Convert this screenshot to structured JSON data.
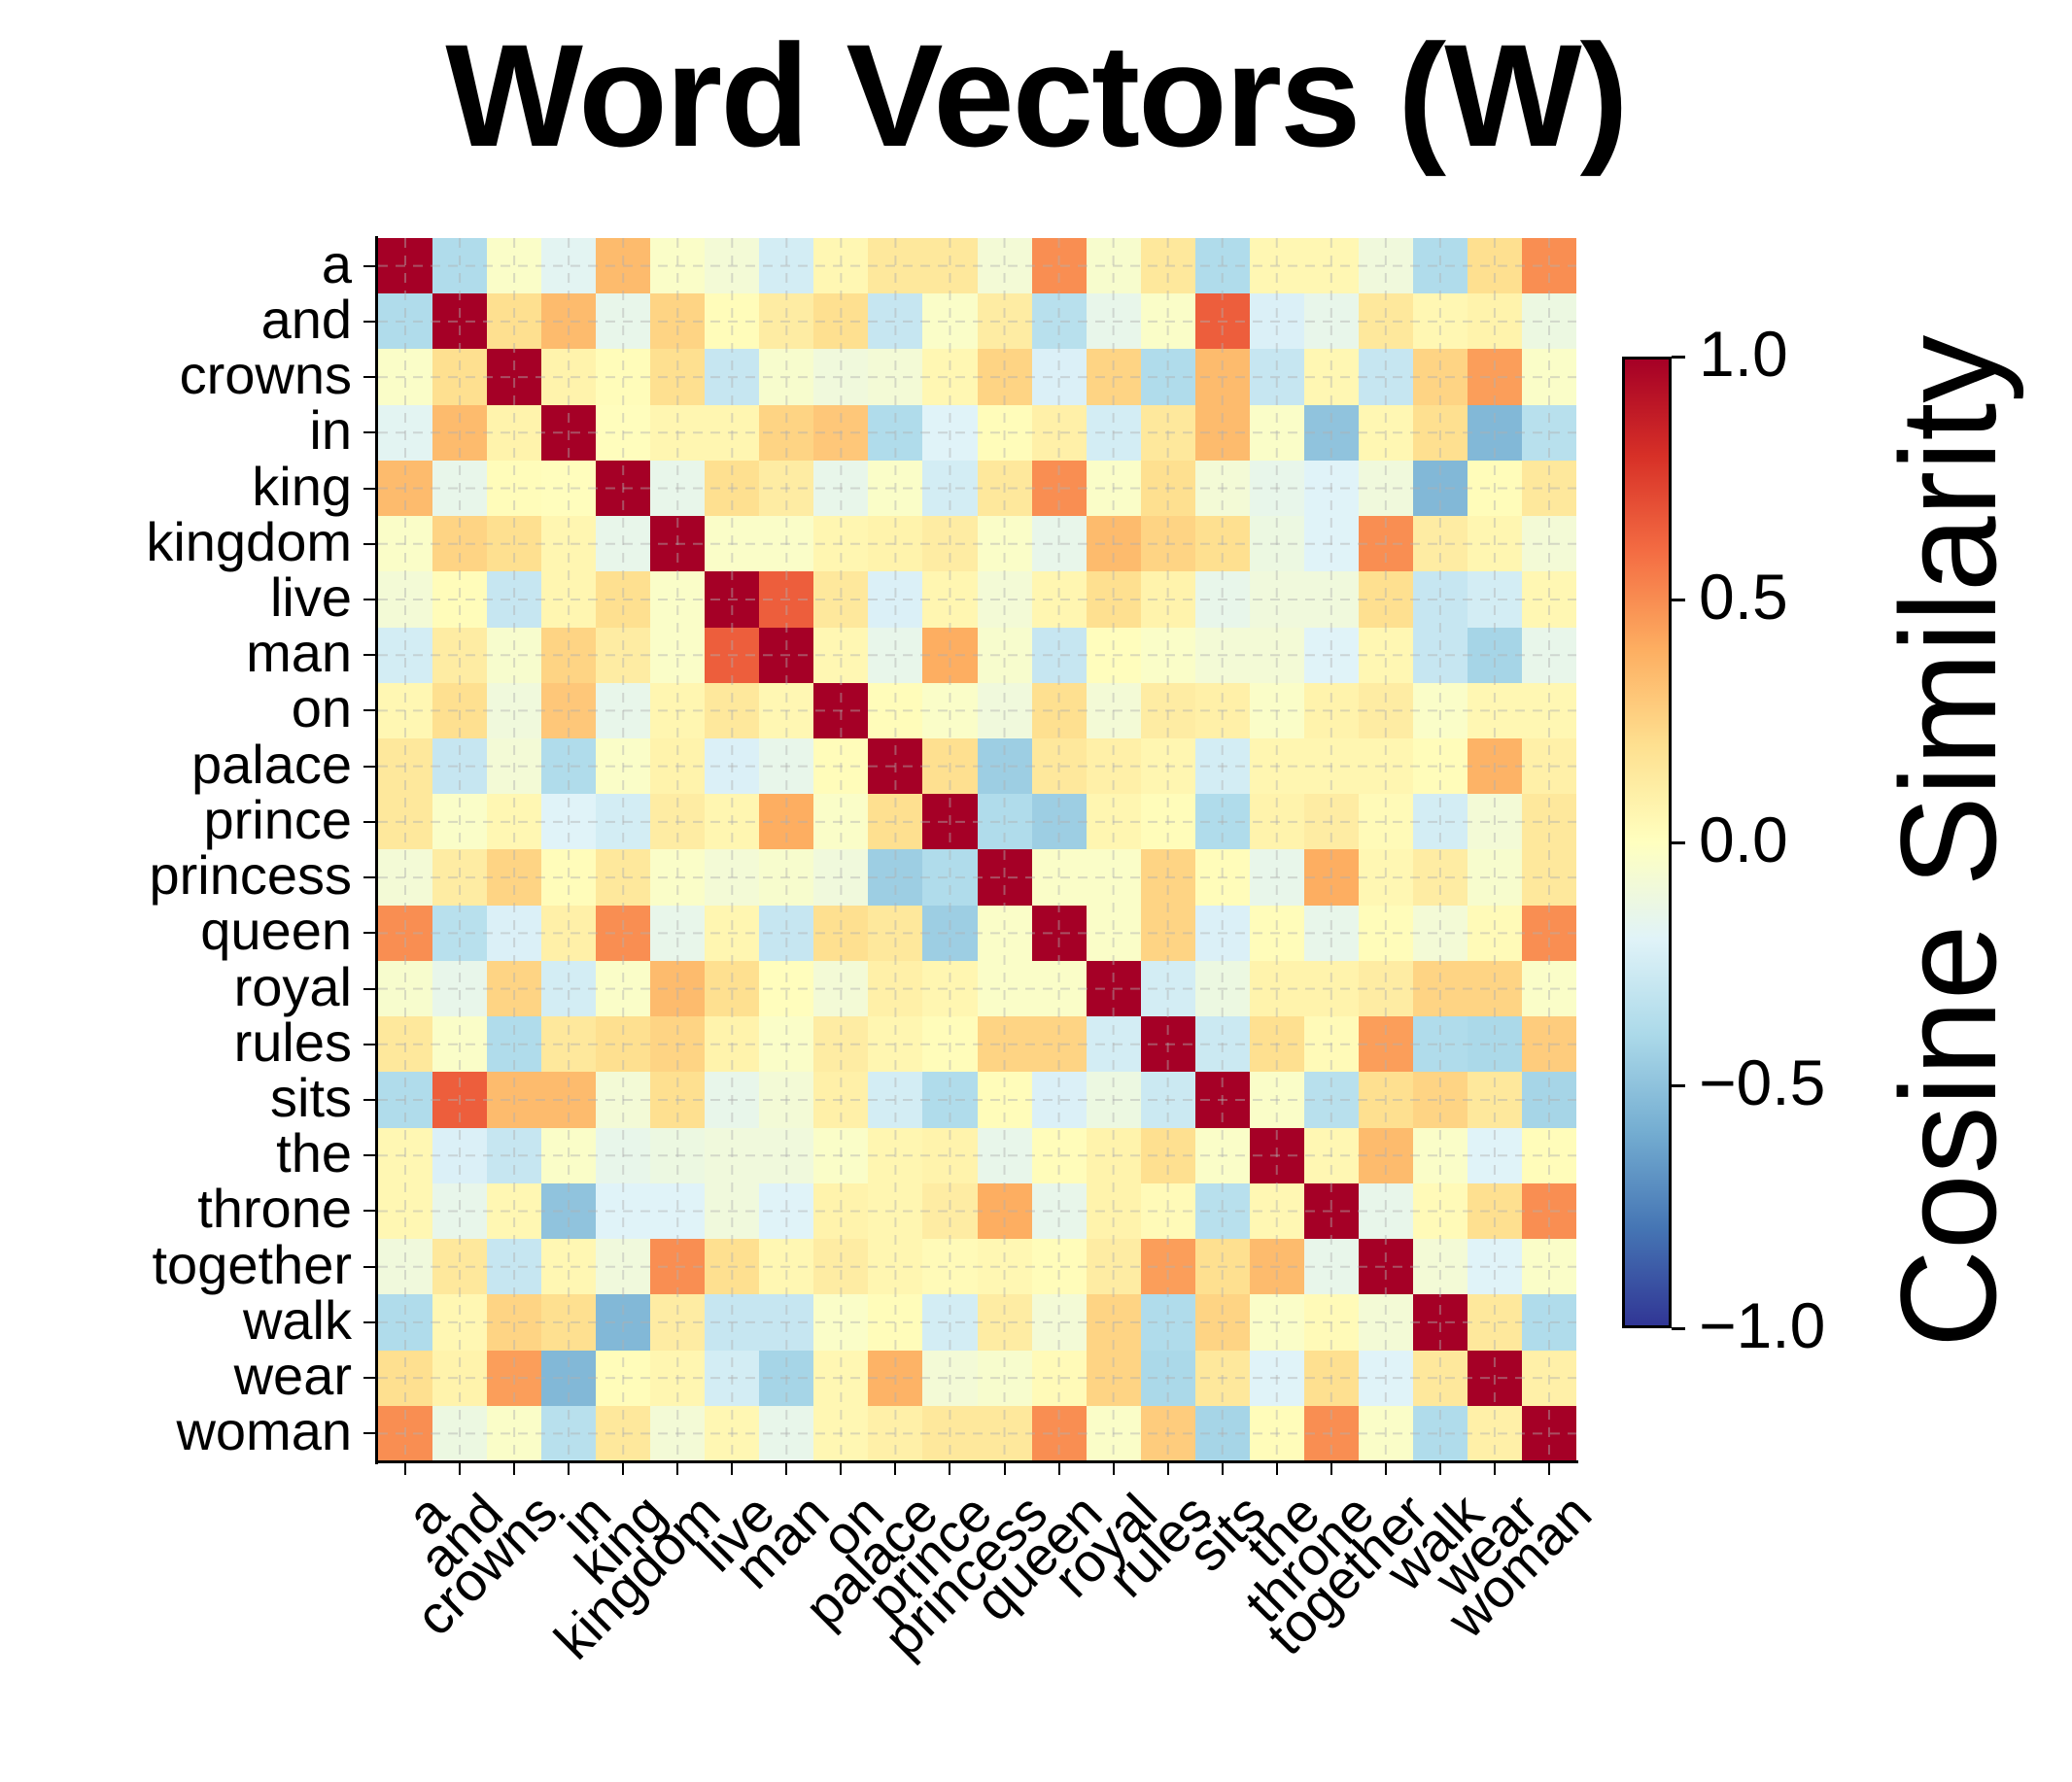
{
  "title": "Word Vectors (W)",
  "colorbar": {
    "label": "Cosine Similarity",
    "ticks": [
      "1.0",
      "0.5",
      "0.0",
      "−0.5",
      "−1.0"
    ],
    "tick_values": [
      1.0,
      0.5,
      0.0,
      -0.5,
      -1.0
    ],
    "colormap": "RdYlBu_r",
    "stops": [
      "#313695",
      "#4575b4",
      "#74add1",
      "#abd9e9",
      "#e0f3f8",
      "#ffffbf",
      "#fee090",
      "#fdae61",
      "#f46d43",
      "#d73027",
      "#a50026"
    ]
  },
  "chart_data": {
    "type": "heatmap",
    "title": "Word Vectors (W)",
    "xlabel": "",
    "ylabel": "",
    "colorbar_label": "Cosine Similarity",
    "vmin": -1.0,
    "vmax": 1.0,
    "grid": true,
    "labels": [
      "a",
      "and",
      "crowns",
      "in",
      "king",
      "kingdom",
      "live",
      "man",
      "on",
      "palace",
      "prince",
      "princess",
      "queen",
      "royal",
      "rules",
      "sits",
      "the",
      "throne",
      "together",
      "walk",
      "wear",
      "woman"
    ],
    "values": [
      [
        1,
        -0.38,
        -0.03,
        -0.18,
        0.35,
        -0.03,
        -0.08,
        -0.25,
        0.05,
        0.15,
        0.15,
        -0.08,
        0.5,
        -0.05,
        0.15,
        -0.38,
        0.05,
        0.05,
        -0.1,
        -0.38,
        0.2,
        0.5
      ],
      [
        -0.38,
        1,
        0.2,
        0.35,
        -0.15,
        0.25,
        0.02,
        0.12,
        0.2,
        -0.3,
        -0.03,
        0.12,
        -0.35,
        -0.15,
        -0.03,
        0.65,
        -0.22,
        -0.15,
        0.15,
        0.05,
        0.08,
        -0.12
      ],
      [
        -0.03,
        0.2,
        1,
        0.08,
        0.02,
        0.2,
        -0.3,
        -0.05,
        -0.1,
        -0.08,
        0.05,
        0.25,
        -0.22,
        0.25,
        -0.38,
        0.35,
        -0.3,
        0.05,
        -0.3,
        0.25,
        0.45,
        -0.03
      ],
      [
        -0.18,
        0.35,
        0.08,
        1,
        0.01,
        0.06,
        0.06,
        0.25,
        0.3,
        -0.38,
        -0.2,
        0.02,
        0.1,
        -0.25,
        0.15,
        0.35,
        -0.03,
        -0.5,
        0.05,
        0.2,
        -0.55,
        -0.35
      ],
      [
        0.35,
        -0.15,
        0.02,
        0.01,
        1,
        -0.15,
        0.2,
        0.12,
        -0.15,
        -0.03,
        -0.25,
        0.15,
        0.5,
        -0.03,
        0.2,
        -0.08,
        -0.15,
        -0.2,
        -0.1,
        -0.55,
        0.02,
        0.15
      ],
      [
        -0.03,
        0.25,
        0.2,
        0.06,
        -0.15,
        1,
        -0.03,
        -0.03,
        0.06,
        0.08,
        0.12,
        -0.03,
        -0.15,
        0.35,
        0.25,
        0.2,
        -0.12,
        -0.2,
        0.5,
        0.12,
        0.06,
        -0.08
      ],
      [
        -0.08,
        0.02,
        -0.3,
        0.06,
        0.2,
        -0.03,
        1,
        0.65,
        0.15,
        -0.22,
        0.06,
        -0.08,
        0.06,
        0.2,
        0.08,
        -0.15,
        -0.1,
        -0.1,
        0.2,
        -0.3,
        -0.25,
        0.05
      ],
      [
        -0.25,
        0.12,
        -0.05,
        0.25,
        0.12,
        -0.03,
        0.65,
        1,
        0.05,
        -0.15,
        0.4,
        -0.05,
        -0.3,
        0.01,
        -0.03,
        -0.08,
        -0.08,
        -0.2,
        0.05,
        -0.3,
        -0.42,
        -0.15
      ],
      [
        0.05,
        0.2,
        -0.1,
        0.3,
        -0.15,
        0.06,
        0.15,
        0.05,
        1,
        0.02,
        -0.03,
        -0.1,
        0.2,
        -0.08,
        0.12,
        0.1,
        -0.03,
        0.08,
        0.12,
        -0.03,
        0.05,
        0.05
      ],
      [
        0.15,
        -0.3,
        -0.08,
        -0.38,
        -0.03,
        0.08,
        -0.22,
        -0.15,
        0.02,
        1,
        0.2,
        -0.45,
        0.15,
        0.1,
        0.06,
        -0.25,
        0.06,
        0.06,
        0.06,
        0.02,
        0.38,
        0.1
      ],
      [
        0.15,
        -0.03,
        0.05,
        -0.2,
        -0.25,
        0.12,
        0.06,
        0.4,
        -0.03,
        0.2,
        1,
        -0.38,
        -0.45,
        0.06,
        0.02,
        -0.38,
        0.08,
        0.12,
        0.03,
        -0.25,
        -0.08,
        0.15
      ],
      [
        -0.08,
        0.12,
        0.25,
        0.02,
        0.15,
        -0.03,
        -0.08,
        -0.05,
        -0.1,
        -0.45,
        -0.38,
        1,
        -0.03,
        -0.03,
        0.25,
        0.02,
        -0.15,
        0.4,
        0.05,
        0.12,
        -0.05,
        0.15
      ],
      [
        0.5,
        -0.35,
        -0.22,
        0.1,
        0.5,
        -0.15,
        0.06,
        -0.3,
        0.2,
        0.15,
        -0.45,
        -0.03,
        1,
        -0.03,
        0.25,
        -0.22,
        0.02,
        -0.15,
        0.02,
        -0.08,
        0.03,
        0.5
      ],
      [
        -0.05,
        -0.15,
        0.25,
        -0.25,
        -0.03,
        0.35,
        0.2,
        0.01,
        -0.08,
        0.1,
        0.06,
        -0.03,
        -0.03,
        1,
        -0.25,
        -0.12,
        0.08,
        0.08,
        0.12,
        0.25,
        0.25,
        -0.03
      ],
      [
        0.15,
        -0.03,
        -0.38,
        0.15,
        0.2,
        0.25,
        0.08,
        -0.03,
        0.12,
        0.06,
        0.02,
        0.25,
        0.25,
        -0.25,
        1,
        -0.28,
        0.2,
        0.03,
        0.45,
        -0.38,
        -0.4,
        0.28
      ],
      [
        -0.38,
        0.65,
        0.35,
        0.35,
        -0.08,
        0.2,
        -0.15,
        -0.08,
        0.1,
        -0.25,
        -0.38,
        0.02,
        -0.22,
        -0.12,
        -0.28,
        1,
        -0.03,
        -0.35,
        0.2,
        0.25,
        0.15,
        -0.42
      ],
      [
        0.05,
        -0.22,
        -0.3,
        -0.03,
        -0.15,
        -0.12,
        -0.1,
        -0.1,
        -0.03,
        0.06,
        0.08,
        -0.15,
        0.02,
        0.08,
        0.2,
        -0.03,
        1,
        0.05,
        0.35,
        -0.03,
        -0.2,
        0.02
      ],
      [
        0.05,
        -0.15,
        0.05,
        -0.5,
        -0.2,
        -0.2,
        -0.1,
        -0.2,
        0.08,
        0.06,
        0.12,
        0.4,
        -0.15,
        0.08,
        0.03,
        -0.35,
        0.05,
        1,
        -0.15,
        0.03,
        0.2,
        0.5
      ],
      [
        -0.1,
        0.15,
        -0.3,
        0.05,
        -0.1,
        0.5,
        0.2,
        0.05,
        0.12,
        0.06,
        0.03,
        0.05,
        0.02,
        0.12,
        0.45,
        0.2,
        0.35,
        -0.15,
        1,
        -0.08,
        -0.2,
        -0.03
      ],
      [
        -0.38,
        0.05,
        0.25,
        0.2,
        -0.55,
        0.12,
        -0.3,
        -0.3,
        -0.03,
        0.02,
        -0.25,
        0.12,
        -0.08,
        0.25,
        -0.38,
        0.25,
        -0.03,
        0.03,
        -0.08,
        1,
        0.15,
        -0.38
      ],
      [
        0.2,
        0.08,
        0.45,
        -0.55,
        0.02,
        0.06,
        -0.25,
        -0.42,
        0.05,
        0.38,
        -0.08,
        -0.05,
        0.03,
        0.25,
        -0.4,
        0.15,
        -0.2,
        0.2,
        -0.2,
        0.15,
        1,
        0.1
      ],
      [
        0.5,
        -0.12,
        -0.03,
        -0.35,
        0.15,
        -0.08,
        0.05,
        -0.15,
        0.05,
        0.1,
        0.15,
        0.15,
        0.5,
        -0.03,
        0.28,
        -0.42,
        0.02,
        0.5,
        -0.03,
        -0.38,
        0.1,
        1
      ]
    ]
  }
}
